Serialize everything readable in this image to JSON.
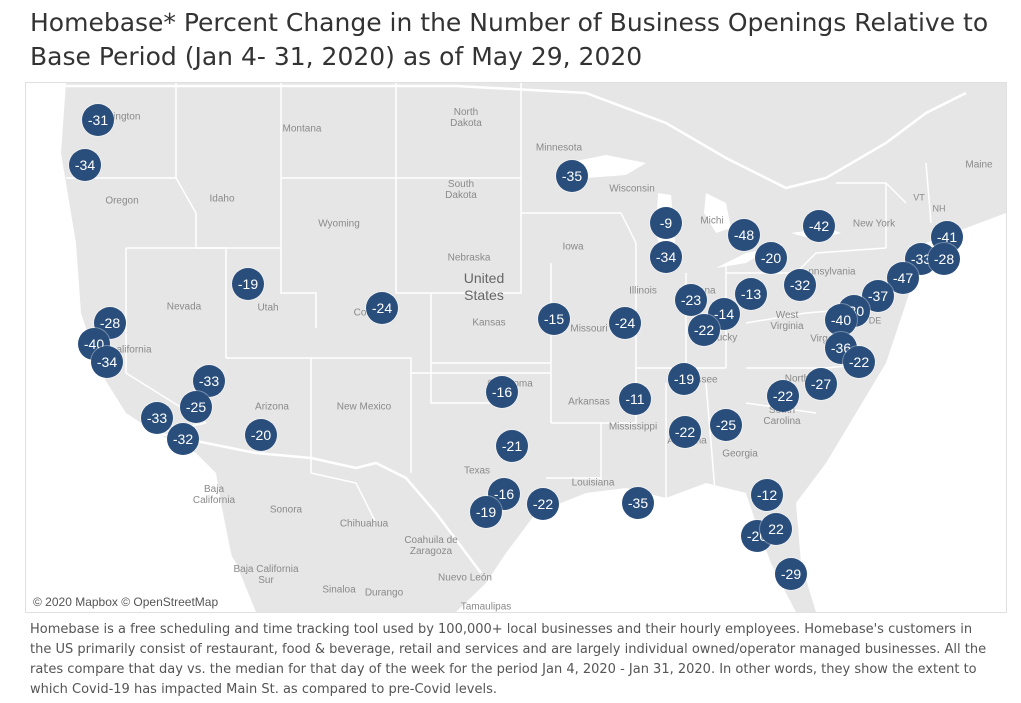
{
  "title": "Homebase* Percent Change in the Number of Business Openings Relative to Base Period (Jan 4- 31, 2020) as of May 29, 2020",
  "attribution": "© 2020 Mapbox © OpenStreetMap",
  "footnote": "Homebase is a free scheduling and time tracking tool used by 100,000+ local businesses and their hourly employees. Homebase's customers in the US primarily consist of restaurant, food & beverage, retail and services and are largely individual owned/operator managed businesses. All the rates compare that day vs. the median for that day of the week for the period Jan 4, 2020 - Jan 31, 2020. In other words, they show the extent to which Covid-19 has impacted Main St. as compared to pre-Covid levels.",
  "colors": {
    "marker": "#2a4e7c",
    "land": "#e6e6e6",
    "border": "#ffffff"
  },
  "place_labels": {
    "washington": "hington",
    "montana": "Montana",
    "north_dakota": "North\nDakota",
    "minnesota": "Minnesota",
    "maine": "Maine",
    "oregon": "Oregon",
    "idaho": "Idaho",
    "south_dakota": "South\nDakota",
    "wisconsin": "Wisconsin",
    "michigan": "Michi",
    "vt": "VT",
    "nh": "NH",
    "new_york": "New York",
    "wyoming": "Wyoming",
    "iowa": "Iowa",
    "nebraska": "Nebraska",
    "united_states": "United\nStates",
    "nevada": "Nevada",
    "utah": "Utah",
    "colorado": "Co",
    "kansas": "Kansas",
    "illinois": "Illinois",
    "indiana": "na",
    "pennsylvania": "nnsylvania",
    "missouri": "Missouri",
    "kentucky": "ucky",
    "west_virginia": "West\nVirginia",
    "virginia": "Virg",
    "de": "DE",
    "california": "alifornia",
    "arizona": "Arizona",
    "new_mexico": "New Mexico",
    "oklahoma": "Oklahoma",
    "arkansas": "Arkansas",
    "tennessee": "ssee",
    "north_carolina": "North",
    "south_carolina": "South\nCarolina",
    "mississippi": "Mississippi",
    "alabama": "Alabama",
    "georgia": "Georgia",
    "texas": "Texas",
    "louisiana": "Louisiana",
    "baja_california": "Baja\nCalifornia",
    "sonora": "Sonora",
    "chihuahua": "Chihuahua",
    "coahuila": "Coahuila de\nZaragoza",
    "baja_california_sur": "Baja California\nSur",
    "sinaloa": "Sinaloa",
    "durango": "Durango",
    "nuevo_leon": "Nuevo León",
    "tamaulipas": "Tamaulipas"
  },
  "markers": [
    {
      "v": "-31"
    },
    {
      "v": "-34"
    },
    {
      "v": "-35"
    },
    {
      "v": "-9"
    },
    {
      "v": "-48"
    },
    {
      "v": "-42"
    },
    {
      "v": "-41"
    },
    {
      "v": "-20"
    },
    {
      "v": "-34"
    },
    {
      "v": "-33"
    },
    {
      "v": "-28"
    },
    {
      "v": "-47"
    },
    {
      "v": "-19"
    },
    {
      "v": "-24"
    },
    {
      "v": "-32"
    },
    {
      "v": "-37"
    },
    {
      "v": "-23"
    },
    {
      "v": "-13"
    },
    {
      "v": "-15"
    },
    {
      "v": "-24"
    },
    {
      "v": "-14"
    },
    {
      "v": "-22"
    },
    {
      "v": "-30"
    },
    {
      "v": "-40"
    },
    {
      "v": "-28"
    },
    {
      "v": "-40"
    },
    {
      "v": "-34"
    },
    {
      "v": "-36"
    },
    {
      "v": "-22"
    },
    {
      "v": "-33"
    },
    {
      "v": "-16"
    },
    {
      "v": "-19"
    },
    {
      "v": "-27"
    },
    {
      "v": "-25"
    },
    {
      "v": "-11"
    },
    {
      "v": "-22"
    },
    {
      "v": "-33"
    },
    {
      "v": "-32"
    },
    {
      "v": "-20"
    },
    {
      "v": "-22"
    },
    {
      "v": "-25"
    },
    {
      "v": "-21"
    },
    {
      "v": "-16"
    },
    {
      "v": "-19"
    },
    {
      "v": "-22"
    },
    {
      "v": "-35"
    },
    {
      "v": "-12"
    },
    {
      "v": "-20"
    },
    {
      "v": "22"
    },
    {
      "v": "-29"
    }
  ]
}
